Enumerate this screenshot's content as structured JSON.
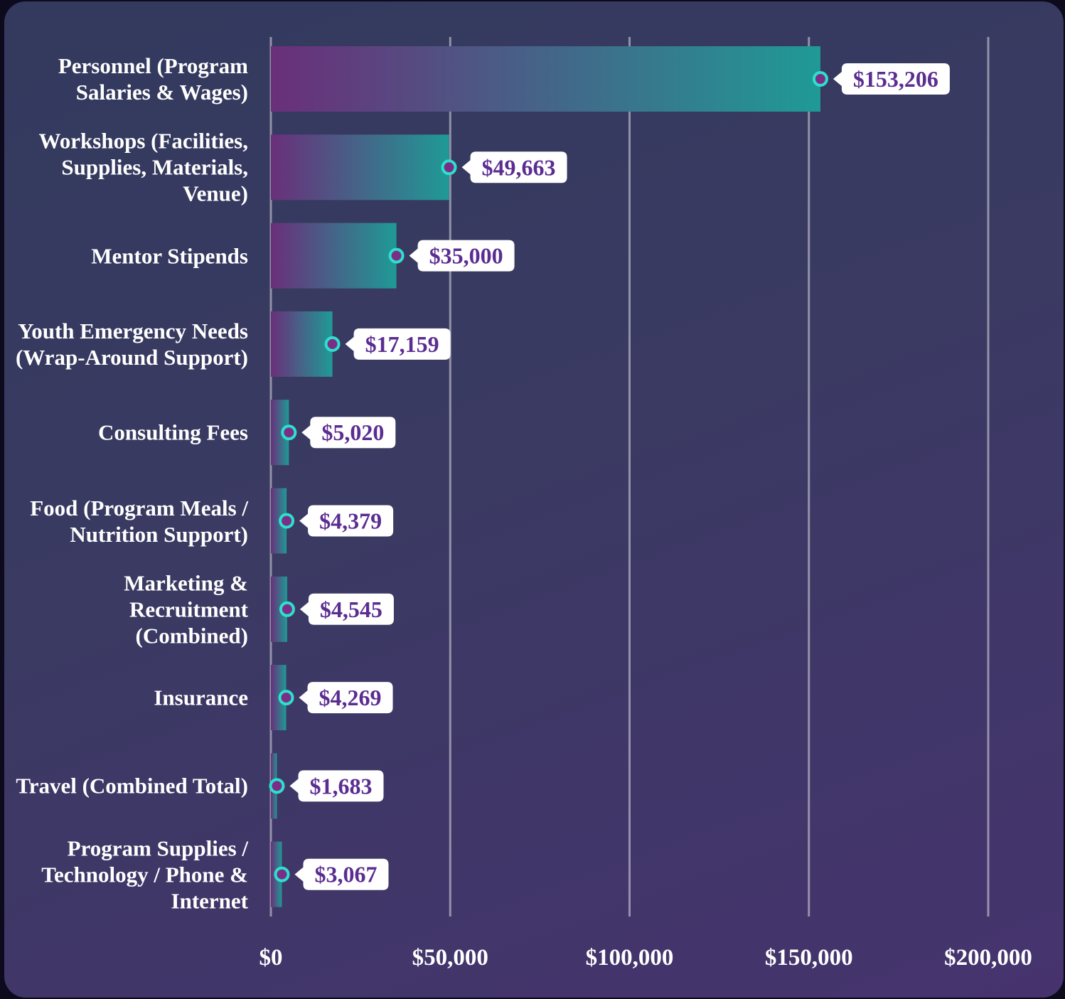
{
  "chart_data": {
    "type": "barh",
    "categories": [
      "Personnel (Program Salaries & Wages)",
      "Workshops (Facilities, Supplies, Materials, Venue)",
      "Mentor Stipends",
      "Youth Emergency Needs (Wrap-Around Support)",
      "Consulting Fees",
      "Food (Program Meals / Nutrition Support)",
      "Marketing & Recruitment (Combined)",
      "Insurance",
      "Travel (Combined Total)",
      "Program Supplies / Technology / Phone & Internet"
    ],
    "values": [
      153206,
      49663,
      35000,
      17159,
      5020,
      4379,
      4545,
      4269,
      1683,
      3067
    ],
    "value_labels": [
      "$153,206",
      "$49,663",
      "$35,000",
      "$17,159",
      "$5,020",
      "$4,379",
      "$4,545",
      "$4,269",
      "$1,683",
      "$3,067"
    ],
    "colors": [
      "#6a2f7a",
      "#1f9a96"
    ],
    "xlim": [
      0,
      200000
    ],
    "xticks": [
      {
        "value": 0,
        "label": "$0"
      },
      {
        "value": 50000,
        "label": "$50,000"
      },
      {
        "value": 100000,
        "label": "$100,000"
      },
      {
        "value": 150000,
        "label": "$150,000"
      },
      {
        "value": 200000,
        "label": "$200,000"
      }
    ],
    "grid": true
  }
}
